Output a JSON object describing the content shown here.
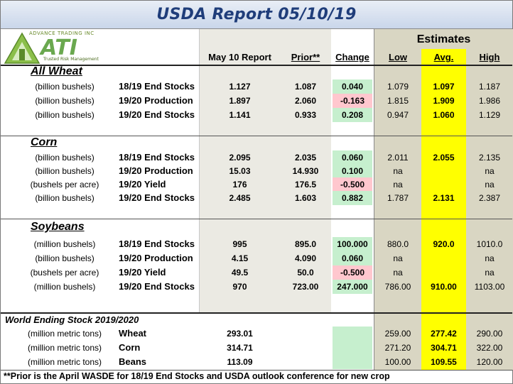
{
  "title": "USDA Report 05/10/19",
  "logo": {
    "top": "ADVANCE TRADING INC",
    "main": "ATI",
    "sub": "Trusted Risk Management"
  },
  "headers": {
    "estimates": "Estimates",
    "may": "May 10 Report",
    "prior": "Prior**",
    "change": "Change",
    "low": "Low",
    "avg": "Avg.",
    "high": "High"
  },
  "sections": {
    "wheat": {
      "title": "All Wheat",
      "rows": [
        {
          "unit": "(billion bushels)",
          "item": "18/19 End Stocks",
          "may": "1.127",
          "prior": "1.087",
          "change": "0.040",
          "low": "1.079",
          "avg": "1.097",
          "high": "1.187"
        },
        {
          "unit": "(billion bushels)",
          "item": "19/20 Production",
          "may": "1.897",
          "prior": "2.060",
          "change": "-0.163",
          "low": "1.815",
          "avg": "1.909",
          "high": "1.986"
        },
        {
          "unit": "(billion bushels)",
          "item": "19/20 End Stocks",
          "may": "1.141",
          "prior": "0.933",
          "change": "0.208",
          "low": "0.947",
          "avg": "1.060",
          "high": "1.129"
        }
      ]
    },
    "corn": {
      "title": "Corn",
      "rows": [
        {
          "unit": "(billion bushels)",
          "item": "18/19 End Stocks",
          "may": "2.095",
          "prior": "2.035",
          "change": "0.060",
          "low": "2.011",
          "avg": "2.055",
          "high": "2.135"
        },
        {
          "unit": "(billion bushels)",
          "item": "19/20 Production",
          "may": "15.03",
          "prior": "14.930",
          "change": "0.100",
          "low": "na",
          "avg": "",
          "high": "na"
        },
        {
          "unit": "(bushels per acre)",
          "item": "19/20 Yield",
          "may": "176",
          "prior": "176.5",
          "change": "-0.500",
          "low": "na",
          "avg": "",
          "high": "na"
        },
        {
          "unit": "(billion bushels)",
          "item": "19/20 End Stocks",
          "may": "2.485",
          "prior": "1.603",
          "change": "0.882",
          "low": "1.787",
          "avg": "2.131",
          "high": "2.387"
        }
      ]
    },
    "soybeans": {
      "title": "Soybeans",
      "rows": [
        {
          "unit": "(million bushels)",
          "item": "18/19 End Stocks",
          "may": "995",
          "prior": "895.0",
          "change": "100.000",
          "low": "880.0",
          "avg": "920.0",
          "high": "1010.0"
        },
        {
          "unit": "(billion bushels)",
          "item": "19/20 Production",
          "may": "4.15",
          "prior": "4.090",
          "change": "0.060",
          "low": "na",
          "avg": "",
          "high": "na"
        },
        {
          "unit": "(bushels per  acre)",
          "item": "19/20 Yield",
          "may": "49.5",
          "prior": "50.0",
          "change": "-0.500",
          "low": "na",
          "avg": "",
          "high": "na"
        },
        {
          "unit": "(million bushels)",
          "item": "19/20 End Stocks",
          "may": "970",
          "prior": "723.00",
          "change": "247.000",
          "low": "786.00",
          "avg": "910.00",
          "high": "1103.00"
        }
      ]
    },
    "world": {
      "title": "World Ending Stock 2019/2020",
      "rows": [
        {
          "unit": "(million metric tons)",
          "item": "Wheat",
          "may": "293.01",
          "prior": "",
          "change": "",
          "low": "259.00",
          "avg": "277.42",
          "high": "290.00"
        },
        {
          "unit": "(million metric tons)",
          "item": "Corn",
          "may": "314.71",
          "prior": "",
          "change": "",
          "low": "271.20",
          "avg": "304.71",
          "high": "322.00"
        },
        {
          "unit": "(million metric tons)",
          "item": "Beans",
          "may": "113.09",
          "prior": "",
          "change": "",
          "low": "100.00",
          "avg": "109.55",
          "high": "120.00"
        }
      ]
    }
  },
  "footnote": "**Prior is the April WASDE for 18/19 End Stocks and USDA outlook conference for new crop"
}
